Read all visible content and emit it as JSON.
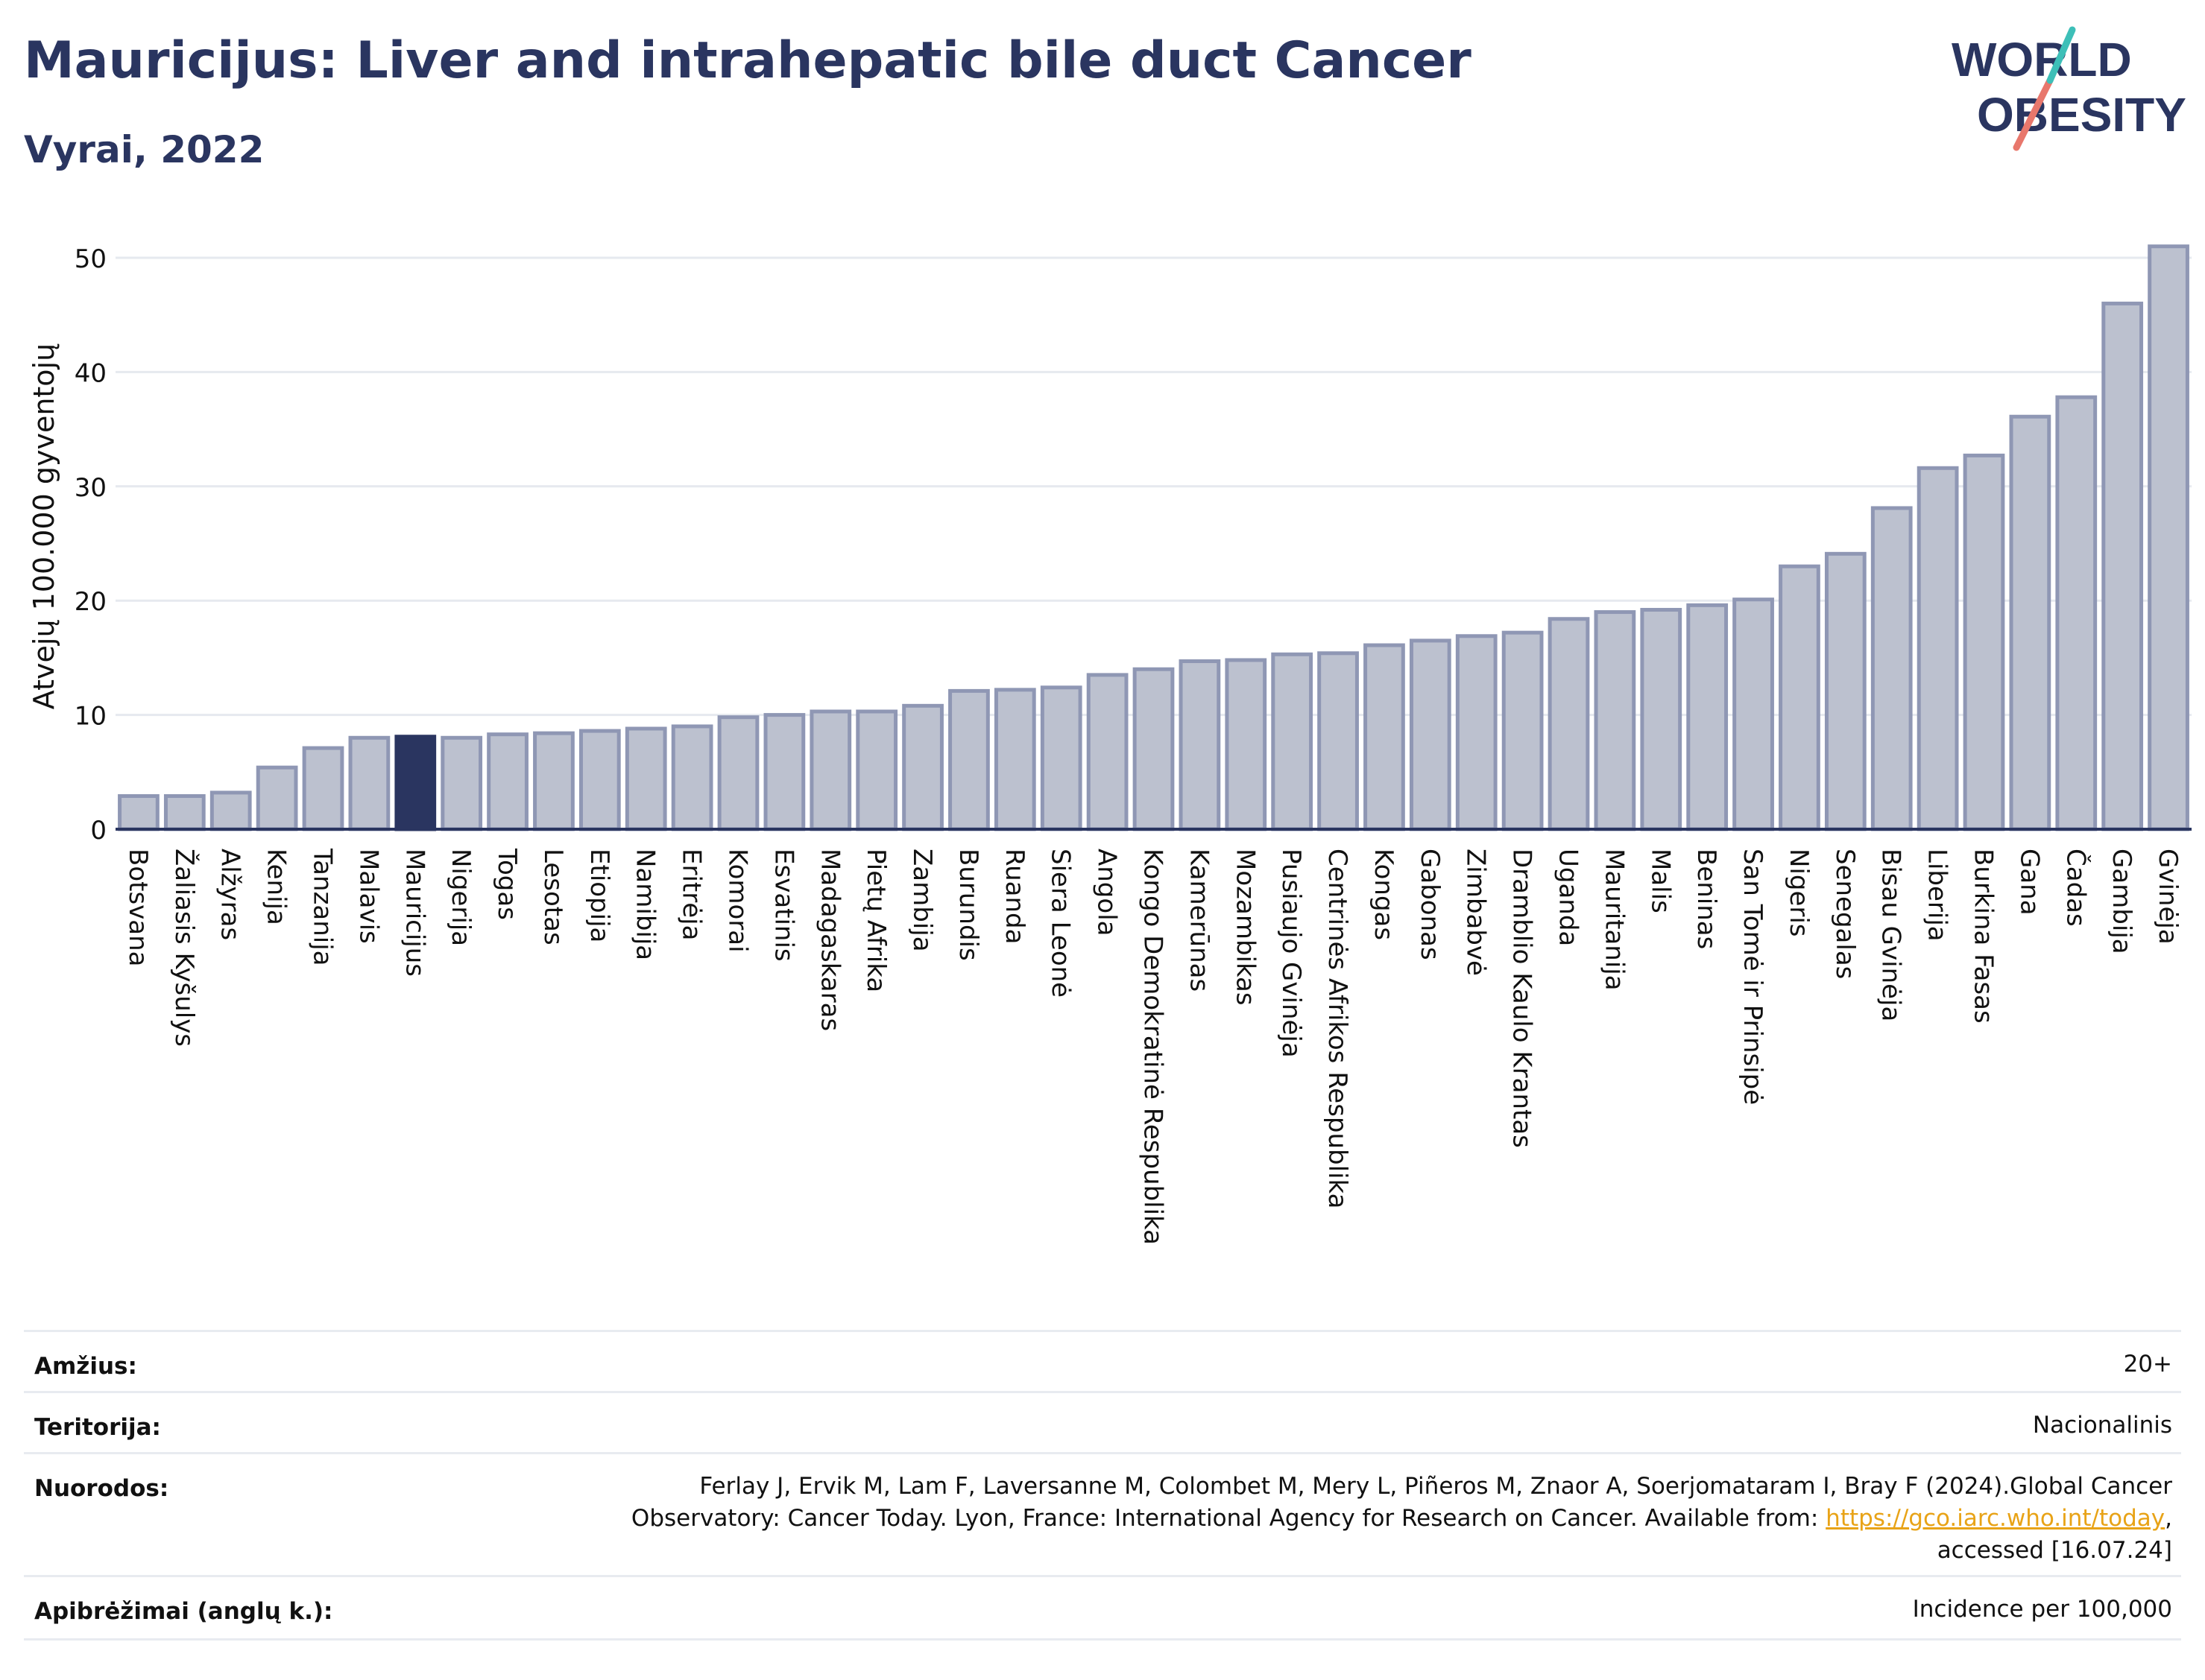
{
  "header": {
    "title": "Mauricijus: Liver and intrahepatic bile duct Cancer",
    "subtitle": "Vyrai, 2022"
  },
  "logo": {
    "line1": "WORLD",
    "line2": "OBESITY"
  },
  "chart_data": {
    "type": "bar",
    "ylabel": "Atvejų 100.000 gyventojų",
    "ylim": [
      0,
      53
    ],
    "yticks": [
      0,
      10,
      20,
      30,
      40,
      50
    ],
    "grid": true,
    "highlight": "Mauricijus",
    "colors": {
      "bar": "#bcc1cf",
      "bar_edge": "#8f97b4",
      "highlight": "#2a3560"
    },
    "categories": [
      "Botsvana",
      "Žaliasis Kyšulys",
      "Alžyras",
      "Kenija",
      "Tanzanija",
      "Malavis",
      "Mauricijus",
      "Nigerija",
      "Togas",
      "Lesotas",
      "Etiopija",
      "Namibija",
      "Eritrėja",
      "Komorai",
      "Esvatinis",
      "Madagaskaras",
      "Pietų Afrika",
      "Zambija",
      "Burundis",
      "Ruanda",
      "Siera Leonė",
      "Angola",
      "Kongo Demokratinė Respublika",
      "Kamerūnas",
      "Mozambikas",
      "Pusiaujo Gvinėja",
      "Centrinės Afrikos Respublika",
      "Kongas",
      "Gabonas",
      "Zimbabvė",
      "Dramblio Kaulo Krantas",
      "Uganda",
      "Mauritanija",
      "Malis",
      "Beninas",
      "San Tomė ir Prinsipė",
      "Nigeris",
      "Senegalas",
      "Bisau Gvinėja",
      "Liberija",
      "Burkina Fasas",
      "Gana",
      "Čadas",
      "Gambija",
      "Gvinėja"
    ],
    "values": [
      2.9,
      2.9,
      3.2,
      5.4,
      7.1,
      8.0,
      8.1,
      8.0,
      8.3,
      8.4,
      8.6,
      8.8,
      9.0,
      9.8,
      10.0,
      10.3,
      10.3,
      10.8,
      12.1,
      12.2,
      12.4,
      13.5,
      14.0,
      14.7,
      14.8,
      15.3,
      15.4,
      16.1,
      16.5,
      16.9,
      17.2,
      18.4,
      19.0,
      19.2,
      19.6,
      20.1,
      23.0,
      24.1,
      28.1,
      31.6,
      32.7,
      36.1,
      37.8,
      46.0,
      51.0
    ]
  },
  "meta": {
    "age_label": "Amžius:",
    "age_value": "20+",
    "territory_label": "Teritorija:",
    "territory_value": "Nacionalinis",
    "refs_label": "Nuorodos:",
    "refs_line1": "Ferlay J, Ervik M, Lam F, Laversanne M, Colombet M, Mery L, Piñeros M, Znaor A, Soerjomataram I, Bray F (2024).Global Cancer",
    "refs_line2_pre": "Observatory: Cancer Today. Lyon, France: International Agency for Research on Cancer. Available from: ",
    "refs_link": "https://gco.iarc.who.int/today",
    "refs_line2_post": ",",
    "refs_line3": "accessed [16.07.24]",
    "defs_label": "Apibrėžimai (anglų k.):",
    "defs_value": "Incidence per 100,000"
  }
}
